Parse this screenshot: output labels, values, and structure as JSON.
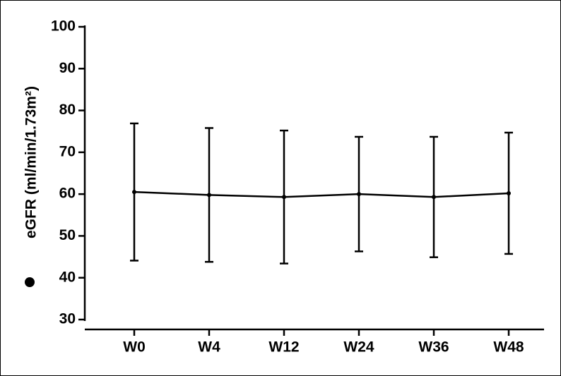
{
  "chart_data": {
    "type": "line",
    "y_label": "eGFR (ml/min/1.73m²)",
    "categories": [
      "W0",
      "W4",
      "W12",
      "W24",
      "W36",
      "W48"
    ],
    "values": [
      60.5,
      59.8,
      59.3,
      60,
      59.3,
      60.2
    ],
    "errors": [
      16.4,
      16,
      15.9,
      13.7,
      14.4,
      14.5
    ],
    "color": "#000000",
    "ylim": [
      30,
      100
    ],
    "yticks": [
      30,
      40,
      50,
      60,
      70,
      80,
      90,
      100
    ]
  }
}
